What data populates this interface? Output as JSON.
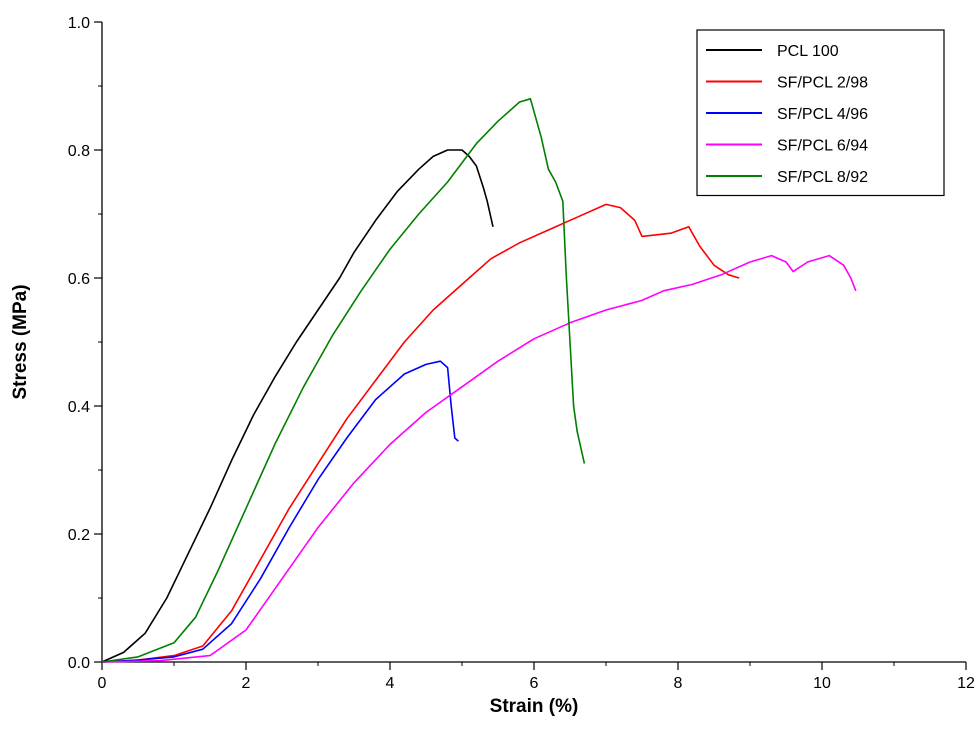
{
  "chart_data": {
    "type": "line",
    "title": "",
    "xlabel": "Strain (%)",
    "ylabel": "Stress (MPa)",
    "xlim": [
      0,
      12
    ],
    "ylim": [
      0,
      1.0
    ],
    "x_ticks": [
      0,
      2,
      4,
      6,
      8,
      10,
      12
    ],
    "y_ticks": [
      0.0,
      0.2,
      0.4,
      0.6,
      0.8,
      1.0
    ],
    "x_tick_labels": [
      "0",
      "2",
      "4",
      "6",
      "8",
      "10",
      "12"
    ],
    "y_tick_labels": [
      "0.0",
      "0.2",
      "0.4",
      "0.6",
      "0.8",
      "1.0"
    ],
    "grid": false,
    "legend_position": "top-right",
    "series": [
      {
        "name": "PCL 100",
        "color": "#000000",
        "points": [
          [
            0,
            0
          ],
          [
            0.3,
            0.015
          ],
          [
            0.6,
            0.045
          ],
          [
            0.9,
            0.1
          ],
          [
            1.2,
            0.17
          ],
          [
            1.5,
            0.24
          ],
          [
            1.8,
            0.315
          ],
          [
            2.1,
            0.385
          ],
          [
            2.4,
            0.445
          ],
          [
            2.7,
            0.5
          ],
          [
            3.0,
            0.55
          ],
          [
            3.3,
            0.6
          ],
          [
            3.5,
            0.64
          ],
          [
            3.8,
            0.69
          ],
          [
            4.1,
            0.735
          ],
          [
            4.4,
            0.77
          ],
          [
            4.6,
            0.79
          ],
          [
            4.8,
            0.8
          ],
          [
            5.0,
            0.8
          ],
          [
            5.1,
            0.79
          ],
          [
            5.2,
            0.775
          ],
          [
            5.3,
            0.74
          ],
          [
            5.35,
            0.72
          ],
          [
            5.43,
            0.68
          ]
        ]
      },
      {
        "name": "SF/PCL 2/98",
        "color": "#ff0000",
        "points": [
          [
            0,
            0
          ],
          [
            0.5,
            0.003
          ],
          [
            1.0,
            0.01
          ],
          [
            1.4,
            0.025
          ],
          [
            1.8,
            0.08
          ],
          [
            2.2,
            0.16
          ],
          [
            2.6,
            0.24
          ],
          [
            3.0,
            0.31
          ],
          [
            3.4,
            0.38
          ],
          [
            3.8,
            0.44
          ],
          [
            4.2,
            0.5
          ],
          [
            4.6,
            0.55
          ],
          [
            5.0,
            0.59
          ],
          [
            5.4,
            0.63
          ],
          [
            5.8,
            0.655
          ],
          [
            6.2,
            0.675
          ],
          [
            6.6,
            0.695
          ],
          [
            7.0,
            0.715
          ],
          [
            7.2,
            0.71
          ],
          [
            7.4,
            0.69
          ],
          [
            7.5,
            0.665
          ],
          [
            7.9,
            0.67
          ],
          [
            8.15,
            0.68
          ],
          [
            8.3,
            0.65
          ],
          [
            8.5,
            0.62
          ],
          [
            8.7,
            0.605
          ],
          [
            8.85,
            0.6
          ]
        ]
      },
      {
        "name": "SF/PCL 4/96",
        "color": "#0000ff",
        "points": [
          [
            0,
            0
          ],
          [
            0.5,
            0.003
          ],
          [
            1.0,
            0.008
          ],
          [
            1.4,
            0.02
          ],
          [
            1.8,
            0.06
          ],
          [
            2.2,
            0.13
          ],
          [
            2.6,
            0.21
          ],
          [
            3.0,
            0.285
          ],
          [
            3.4,
            0.35
          ],
          [
            3.8,
            0.41
          ],
          [
            4.2,
            0.45
          ],
          [
            4.5,
            0.465
          ],
          [
            4.7,
            0.47
          ],
          [
            4.8,
            0.46
          ],
          [
            4.85,
            0.4
          ],
          [
            4.9,
            0.35
          ],
          [
            4.95,
            0.345
          ]
        ]
      },
      {
        "name": "SF/PCL 6/94",
        "color": "#ff00ff",
        "points": [
          [
            0,
            0
          ],
          [
            0.8,
            0.002
          ],
          [
            1.5,
            0.01
          ],
          [
            2.0,
            0.05
          ],
          [
            2.5,
            0.13
          ],
          [
            3.0,
            0.21
          ],
          [
            3.5,
            0.28
          ],
          [
            4.0,
            0.34
          ],
          [
            4.5,
            0.39
          ],
          [
            5.0,
            0.43
          ],
          [
            5.5,
            0.47
          ],
          [
            6.0,
            0.505
          ],
          [
            6.5,
            0.53
          ],
          [
            7.0,
            0.55
          ],
          [
            7.5,
            0.565
          ],
          [
            7.8,
            0.58
          ],
          [
            8.2,
            0.59
          ],
          [
            8.6,
            0.605
          ],
          [
            9.0,
            0.625
          ],
          [
            9.3,
            0.635
          ],
          [
            9.5,
            0.625
          ],
          [
            9.6,
            0.61
          ],
          [
            9.8,
            0.625
          ],
          [
            10.1,
            0.635
          ],
          [
            10.3,
            0.62
          ],
          [
            10.4,
            0.6
          ],
          [
            10.47,
            0.58
          ]
        ]
      },
      {
        "name": "SF/PCL 8/92",
        "color": "#008000",
        "points": [
          [
            0,
            0
          ],
          [
            0.5,
            0.008
          ],
          [
            1.0,
            0.03
          ],
          [
            1.3,
            0.07
          ],
          [
            1.6,
            0.14
          ],
          [
            2.0,
            0.24
          ],
          [
            2.4,
            0.34
          ],
          [
            2.8,
            0.43
          ],
          [
            3.2,
            0.51
          ],
          [
            3.6,
            0.58
          ],
          [
            4.0,
            0.645
          ],
          [
            4.4,
            0.7
          ],
          [
            4.8,
            0.75
          ],
          [
            5.2,
            0.81
          ],
          [
            5.5,
            0.845
          ],
          [
            5.8,
            0.875
          ],
          [
            5.95,
            0.88
          ],
          [
            6.1,
            0.82
          ],
          [
            6.2,
            0.77
          ],
          [
            6.3,
            0.75
          ],
          [
            6.4,
            0.72
          ],
          [
            6.45,
            0.6
          ],
          [
            6.5,
            0.5
          ],
          [
            6.55,
            0.4
          ],
          [
            6.6,
            0.36
          ],
          [
            6.7,
            0.31
          ]
        ]
      }
    ]
  }
}
